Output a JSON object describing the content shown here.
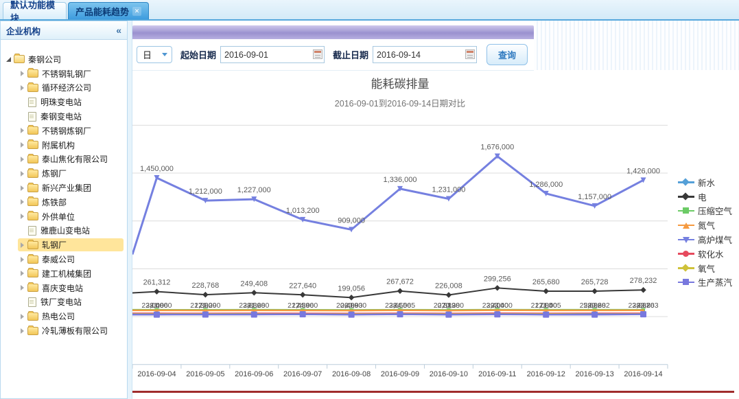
{
  "tabs": {
    "items": [
      {
        "label": "默认功能模块",
        "active": false
      },
      {
        "label": "产品能耗趋势",
        "active": true,
        "close_icon": "✕"
      }
    ]
  },
  "sidebar": {
    "title": "企业机构",
    "collapse_icon": "«",
    "tree": [
      {
        "label": "秦钢公司",
        "type": "folder-open",
        "level": 0,
        "expanded": true,
        "selected": false
      },
      {
        "label": "不锈钢轧钢厂",
        "type": "folder",
        "level": 1,
        "selected": false
      },
      {
        "label": "循环经济公司",
        "type": "folder",
        "level": 1,
        "selected": false
      },
      {
        "label": "明珠变电站",
        "type": "leaf",
        "level": 1,
        "selected": false
      },
      {
        "label": "秦钢变电站",
        "type": "leaf",
        "level": 1,
        "selected": false
      },
      {
        "label": "不锈钢炼钢厂",
        "type": "folder",
        "level": 1,
        "selected": false
      },
      {
        "label": "附属机构",
        "type": "folder",
        "level": 1,
        "selected": false
      },
      {
        "label": "泰山焦化有限公司",
        "type": "folder",
        "level": 1,
        "selected": false
      },
      {
        "label": "炼钢厂",
        "type": "folder",
        "level": 1,
        "selected": false
      },
      {
        "label": "新兴产业集团",
        "type": "folder",
        "level": 1,
        "selected": false
      },
      {
        "label": "炼铁部",
        "type": "folder",
        "level": 1,
        "selected": false
      },
      {
        "label": "外供单位",
        "type": "folder",
        "level": 1,
        "selected": false
      },
      {
        "label": "雅鹿山变电站",
        "type": "leaf",
        "level": 1,
        "selected": false
      },
      {
        "label": "轧钢厂",
        "type": "folder",
        "level": 1,
        "selected": true
      },
      {
        "label": "泰威公司",
        "type": "folder",
        "level": 1,
        "selected": false
      },
      {
        "label": "建工机械集团",
        "type": "folder",
        "level": 1,
        "selected": false
      },
      {
        "label": "喜庆变电站",
        "type": "folder",
        "level": 1,
        "selected": false
      },
      {
        "label": "铁厂变电站",
        "type": "leaf",
        "level": 1,
        "selected": false
      },
      {
        "label": "热电公司",
        "type": "folder",
        "level": 1,
        "selected": false
      },
      {
        "label": "冷轧薄板有限公司",
        "type": "folder",
        "level": 1,
        "selected": false
      }
    ]
  },
  "toolbar": {
    "period_value": "日",
    "start_label": "起始日期",
    "start_value": "2016-09-01",
    "end_label": "截止日期",
    "end_value": "2016-09-14",
    "query_label": "查询"
  },
  "chart_data": {
    "type": "line",
    "title": "能耗碳排量",
    "subtitle": "2016-09-01到2016-09-14日期对比",
    "legend_position": "right",
    "grid": true,
    "ylim": [
      -500000,
      2000000
    ],
    "y_gridlines": [
      0,
      500000,
      1000000,
      1500000,
      2000000
    ],
    "categories": [
      "2016-09-04",
      "2016-09-05",
      "2016-09-06",
      "2016-09-07",
      "2016-09-08",
      "2016-09-09",
      "2016-09-10",
      "2016-09-11",
      "2016-09-12",
      "2016-09-13",
      "2016-09-14"
    ],
    "series": [
      {
        "name": "新水",
        "color": "#55A0D8",
        "symbol": "diamond",
        "z": 5,
        "line_width": 2,
        "marker_size": 5,
        "labels": "cluster",
        "label_dx": -6,
        "values_approx": true,
        "values": [
          23040,
          21390,
          23880,
          21459,
          20400,
          23665,
          20389,
          23400,
          21005,
          25682,
          23867
        ]
      },
      {
        "name": "电",
        "color": "#383838",
        "symbol": "diamond",
        "z": 6,
        "line_width": 2,
        "marker_size": 6,
        "labels": "above",
        "lead": 248000,
        "values_approx": false,
        "values": [
          261312,
          228768,
          249408,
          227640,
          199056,
          267672,
          226008,
          299256,
          265680,
          265728,
          278232
        ]
      },
      {
        "name": "压缩空气",
        "color": "#6CCB66",
        "symbol": "square",
        "z": 1,
        "line_width": 2.5,
        "marker_size": 5,
        "labels": "none",
        "values_approx": true,
        "values": [
          70560,
          69840,
          70800,
          69600,
          68880,
          71280,
          69120,
          72000,
          70560,
          70800,
          71040
        ]
      },
      {
        "name": "氮气",
        "color": "#F59A40",
        "symbol": "triangle-up",
        "z": 2,
        "line_width": 2.5,
        "marker_size": 5,
        "labels": "none",
        "values_approx": true,
        "values": [
          65280,
          64800,
          65760,
          64560,
          63840,
          66240,
          64080,
          66960,
          65520,
          65280,
          66000
        ]
      },
      {
        "name": "高炉煤气",
        "color": "#7580E0",
        "symbol": "triangle-down",
        "z": 7,
        "line_width": 3,
        "marker_size": 8,
        "labels": "above",
        "lead": 650000,
        "values_approx": false,
        "values": [
          1450000,
          1212000,
          1227000,
          1013200,
          909000,
          1336000,
          1231000,
          1676000,
          1286000,
          1157000,
          1426000
        ]
      },
      {
        "name": "软化水",
        "color": "#E64A5E",
        "symbol": "circle",
        "z": 3,
        "line_width": 2,
        "marker_size": 5,
        "labels": "none",
        "values_approx": true,
        "values": [
          34560,
          34080,
          34800,
          33840,
          33360,
          35040,
          33600,
          35520,
          34320,
          34560,
          34800
        ]
      },
      {
        "name": "氧气",
        "color": "#CFC23A",
        "symbol": "diamond",
        "z": 4,
        "line_width": 2,
        "marker_size": 5,
        "labels": "cluster",
        "label_dx": 0,
        "values_approx": true,
        "values": [
          28080,
          27600,
          28320,
          27360,
          26880,
          28560,
          27120,
          29040,
          27840,
          28080,
          28320
        ]
      },
      {
        "name": "生产蒸汽",
        "color": "#7878DE",
        "symbol": "square",
        "z": 8,
        "line_width": 2.5,
        "marker_size": 9,
        "labels": "cluster",
        "label_dx": 6,
        "values_approx": true,
        "values": [
          21060,
          21290,
          21680,
          24060,
          20930,
          24065,
          20380,
          23400,
          21005,
          20682,
          23863
        ]
      }
    ]
  }
}
